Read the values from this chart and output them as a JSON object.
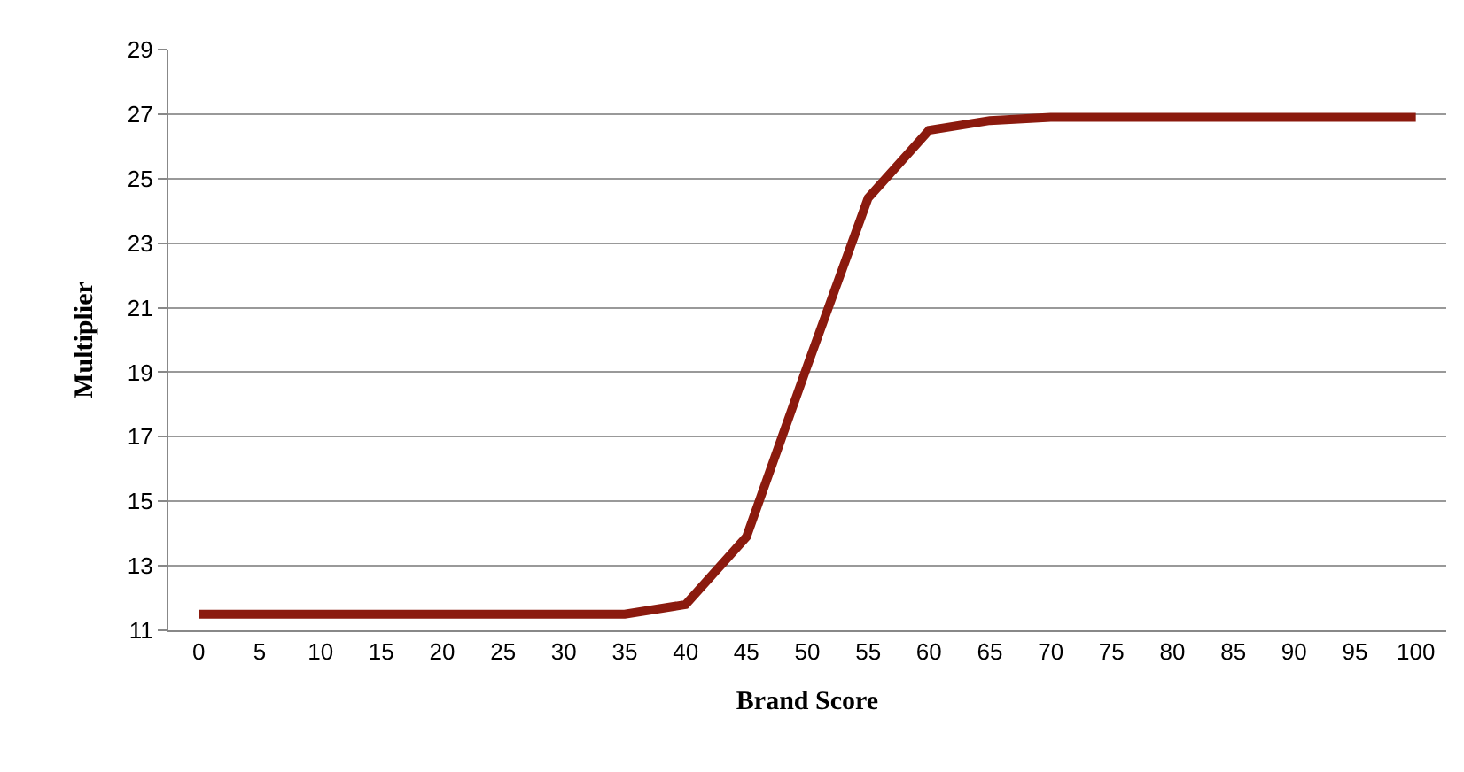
{
  "chart_data": {
    "type": "line",
    "xlabel": "Brand Score",
    "ylabel": "Multiplier",
    "categories": [
      "0",
      "5",
      "10",
      "15",
      "20",
      "25",
      "30",
      "35",
      "40",
      "45",
      "50",
      "55",
      "60",
      "65",
      "70",
      "75",
      "80",
      "85",
      "90",
      "95",
      "100"
    ],
    "series": [
      {
        "color": "#8b1a0e",
        "values": [
          11.5,
          11.5,
          11.5,
          11.5,
          11.5,
          11.5,
          11.5,
          11.5,
          11.8,
          13.9,
          19.2,
          24.4,
          26.5,
          26.8,
          26.9,
          26.9,
          26.9,
          26.9,
          26.9,
          26.9,
          26.9
        ]
      }
    ],
    "ylim": [
      11,
      29
    ],
    "yticks": [
      11,
      13,
      15,
      17,
      19,
      21,
      23,
      25,
      27,
      29
    ],
    "grid": "y",
    "legend": false,
    "marker": "none",
    "line_style": "solid"
  }
}
